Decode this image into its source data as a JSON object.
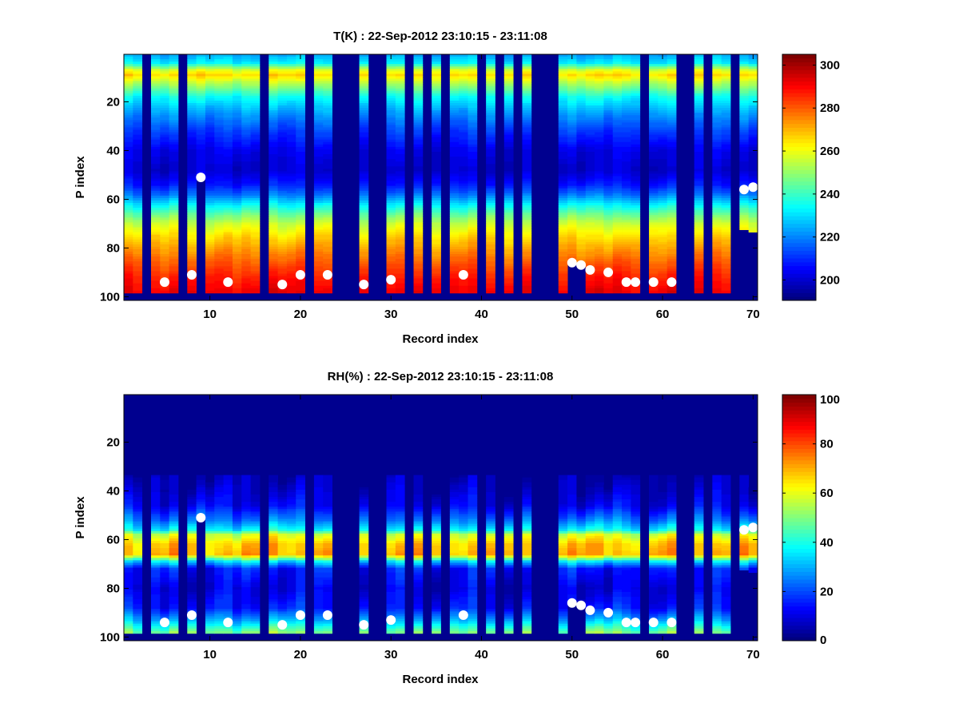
{
  "chart_data": [
    {
      "type": "heatmap",
      "title": "T(K) : 22-Sep-2012 23:10:15 - 23:11:08",
      "xlabel": "Record index",
      "ylabel": "P index",
      "xlim": [
        0.5,
        70.5
      ],
      "ylim": [
        0.5,
        101.5
      ],
      "xticks": [
        10,
        20,
        30,
        40,
        50,
        60,
        70
      ],
      "yticks": [
        20,
        40,
        60,
        80,
        100
      ],
      "clim": [
        190.5,
        305
      ],
      "colorbar_ticks": [
        200,
        220,
        240,
        260,
        280,
        300
      ],
      "colormap": "jet",
      "records": 70,
      "levels": 101,
      "max_valid_p": 98,
      "min_valid_p": 1,
      "missing_records": [
        3,
        7,
        16,
        21,
        24,
        25,
        26,
        28,
        29,
        32,
        34,
        36,
        40,
        42,
        44,
        46,
        47,
        48,
        58,
        62,
        63,
        65,
        68
      ],
      "partial_records": [
        {
          "record": 9,
          "max_p": 51
        },
        {
          "record": 50,
          "max_p": 86
        },
        {
          "record": 51,
          "max_p": 87
        },
        {
          "record": 69,
          "max_p": 72
        },
        {
          "record": 70,
          "max_p": 73
        }
      ],
      "profile": {
        "p": [
          1,
          4,
          7,
          9,
          12,
          18,
          25,
          32,
          40,
          48,
          54,
          58,
          62,
          66,
          70,
          75,
          80,
          86,
          92,
          98
        ],
        "value": [
          225,
          232,
          258,
          266,
          255,
          235,
          222,
          212,
          203,
          200,
          208,
          218,
          232,
          245,
          256,
          265,
          272,
          280,
          287,
          292
        ]
      },
      "noise_amplitude": 4,
      "markers": [
        [
          5,
          94
        ],
        [
          8,
          91
        ],
        [
          9,
          51
        ],
        [
          12,
          94
        ],
        [
          18,
          95
        ],
        [
          20,
          91
        ],
        [
          23,
          91
        ],
        [
          27,
          95
        ],
        [
          30,
          93
        ],
        [
          38,
          91
        ],
        [
          50,
          86
        ],
        [
          51,
          87
        ],
        [
          52,
          89
        ],
        [
          54,
          90
        ],
        [
          56,
          94
        ],
        [
          57,
          94
        ],
        [
          59,
          94
        ],
        [
          61,
          94
        ],
        [
          69,
          56
        ],
        [
          70,
          55
        ]
      ]
    },
    {
      "type": "heatmap",
      "title": "RH(%) : 22-Sep-2012 23:10:15 - 23:11:08",
      "xlabel": "Record index",
      "ylabel": "P index",
      "xlim": [
        0.5,
        70.5
      ],
      "ylim": [
        0.5,
        101.5
      ],
      "xticks": [
        10,
        20,
        30,
        40,
        50,
        60,
        70
      ],
      "yticks": [
        20,
        40,
        60,
        80,
        100
      ],
      "clim": [
        0,
        100
      ],
      "colorbar_ticks": [
        0,
        20,
        40,
        60,
        80,
        100
      ],
      "colormap": "jet",
      "records": 70,
      "levels": 101,
      "max_valid_p": 98,
      "min_valid_p": 1,
      "missing_records": [
        3,
        7,
        16,
        21,
        24,
        25,
        26,
        28,
        29,
        32,
        34,
        36,
        40,
        42,
        44,
        46,
        47,
        48,
        58,
        62,
        63,
        65,
        68
      ],
      "partial_records": [
        {
          "record": 9,
          "max_p": 51
        },
        {
          "record": 50,
          "max_p": 86
        },
        {
          "record": 51,
          "max_p": 87
        },
        {
          "record": 69,
          "max_p": 72
        },
        {
          "record": 70,
          "max_p": 73
        }
      ],
      "profile": {
        "p": [
          1,
          33,
          34,
          40,
          46,
          52,
          56,
          58,
          62,
          66,
          67,
          69,
          72,
          80,
          88,
          93,
          98
        ],
        "value": [
          0,
          0,
          5,
          8,
          12,
          25,
          38,
          58,
          68,
          70,
          60,
          35,
          15,
          10,
          15,
          30,
          50
        ]
      },
      "noise_amplitude": 7,
      "markers": [
        [
          5,
          94
        ],
        [
          8,
          91
        ],
        [
          9,
          51
        ],
        [
          12,
          94
        ],
        [
          18,
          95
        ],
        [
          20,
          91
        ],
        [
          23,
          91
        ],
        [
          27,
          95
        ],
        [
          30,
          93
        ],
        [
          38,
          91
        ],
        [
          50,
          86
        ],
        [
          51,
          87
        ],
        [
          52,
          89
        ],
        [
          54,
          90
        ],
        [
          56,
          94
        ],
        [
          57,
          94
        ],
        [
          59,
          94
        ],
        [
          61,
          94
        ],
        [
          69,
          56
        ],
        [
          70,
          55
        ]
      ]
    }
  ]
}
